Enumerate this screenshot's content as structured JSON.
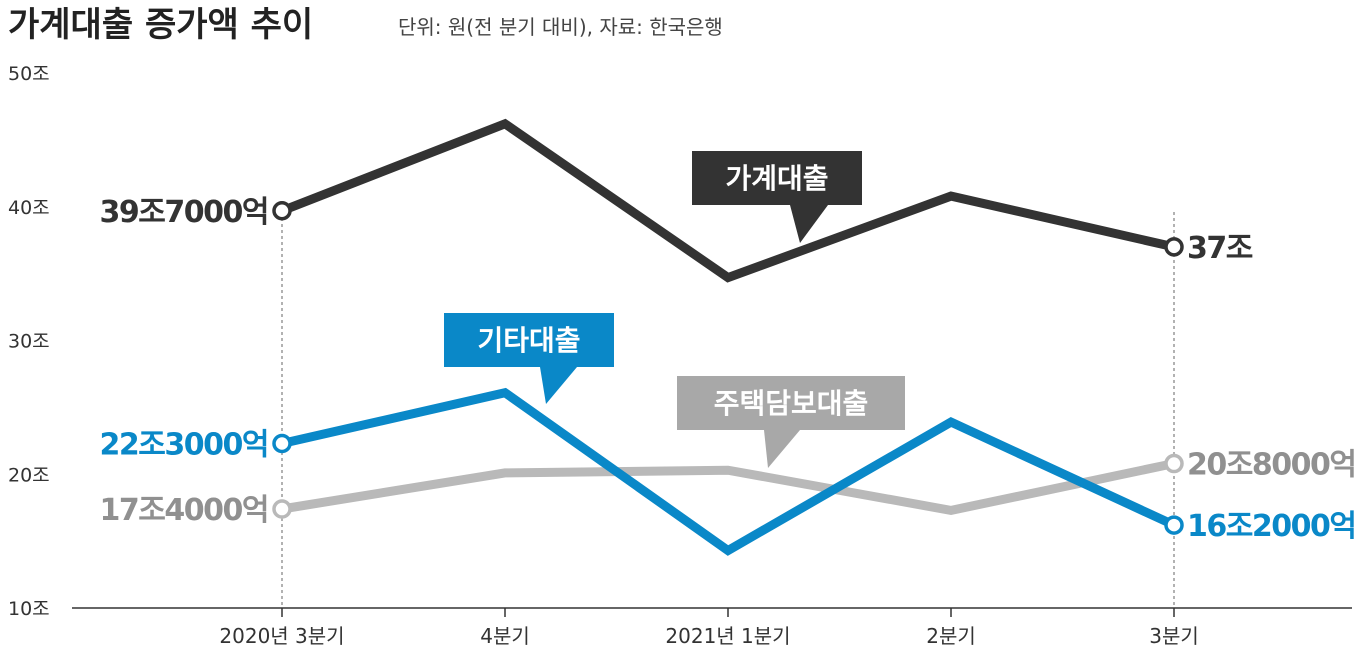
{
  "chart_data": {
    "type": "line",
    "title": "가계대출 증가액 추이",
    "subtitle": "단위: 원(전 분기 대비), 자료: 한국은행",
    "categories": [
      "2020년 3분기",
      "4분기",
      "2021년 1분기",
      "2분기",
      "3분기"
    ],
    "ylim": [
      10,
      50
    ],
    "y_ticks": [
      {
        "value": 50,
        "label": "50조"
      },
      {
        "value": 40,
        "label": "40조"
      },
      {
        "value": 30,
        "label": "30조"
      },
      {
        "value": 20,
        "label": "20조"
      },
      {
        "value": 10,
        "label": "10조"
      }
    ],
    "grid": false,
    "series": [
      {
        "name": "가계대출",
        "color": "#333333",
        "values": [
          39.7,
          46.2,
          34.7,
          40.8,
          37.0
        ],
        "start_label": "39조7000억",
        "end_label": "37조"
      },
      {
        "name": "기타대출",
        "color": "#0a88c8",
        "values": [
          22.3,
          26.1,
          14.3,
          23.9,
          16.2
        ],
        "start_label": "22조3000억",
        "end_label": "16조2000억"
      },
      {
        "name": "주택담보대출",
        "color": "#b9b9b9",
        "label_color": "#909090",
        "values": [
          17.4,
          20.1,
          20.3,
          17.3,
          20.8
        ],
        "start_label": "17조4000억",
        "end_label": "20조8000억"
      }
    ]
  }
}
